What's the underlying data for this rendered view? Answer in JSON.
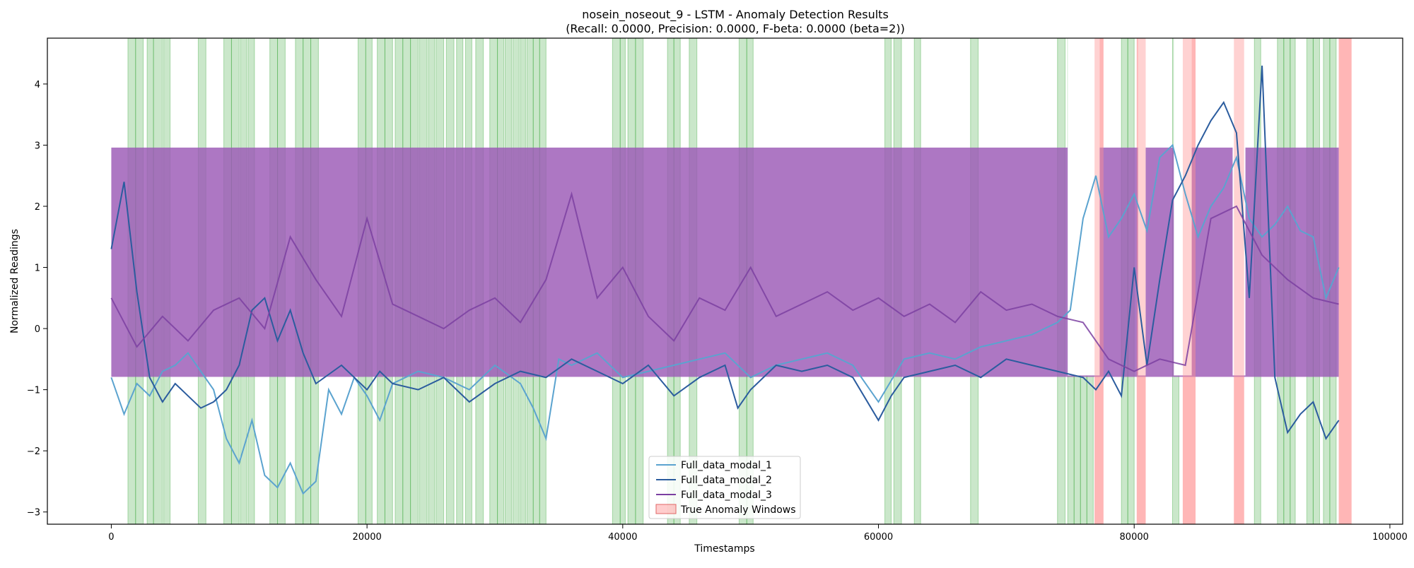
{
  "chart_data": {
    "type": "line",
    "title_line1": "nosein_noseout_9 - LSTM - Anomaly Detection Results",
    "title_line2": "(Recall: 0.0000, Precision: 0.0000, F-beta: 0.0000 (beta=2))",
    "xlabel": "Timestamps",
    "ylabel": "Normalized Readings",
    "xlim": [
      -5000,
      101000
    ],
    "ylim": [
      -3.2,
      4.75
    ],
    "x_ticks": [
      0,
      20000,
      40000,
      60000,
      80000,
      100000
    ],
    "x_tick_labels": [
      "0",
      "20000",
      "40000",
      "60000",
      "80000",
      "100000"
    ],
    "y_ticks": [
      -3,
      -2,
      -1,
      0,
      1,
      2,
      3,
      4
    ],
    "y_tick_labels": [
      "−3",
      "−2",
      "−1",
      "0",
      "1",
      "2",
      "3",
      "4"
    ],
    "grid": false,
    "legend_position": "lower-center",
    "series": [
      {
        "name": "Full_data_modal_1",
        "color": "#5ba3cf",
        "x": [
          0,
          1000,
          2000,
          3000,
          4000,
          5000,
          6000,
          8000,
          9000,
          10000,
          11000,
          12000,
          13000,
          14000,
          15000,
          16000,
          17000,
          18000,
          19000,
          20000,
          21000,
          22000,
          24000,
          26000,
          28000,
          30000,
          32000,
          33000,
          34000,
          35000,
          36000,
          38000,
          40000,
          42000,
          44000,
          46000,
          48000,
          50000,
          52000,
          54000,
          56000,
          58000,
          60000,
          62000,
          64000,
          66000,
          68000,
          70000,
          72000,
          74000,
          75000,
          76000,
          77000,
          78000,
          79000,
          80000,
          81000,
          82000,
          83000,
          84000,
          85000,
          86000,
          87000,
          88000,
          89000,
          90000,
          91000,
          92000,
          93000,
          94000,
          95000,
          96000
        ],
        "values": [
          -0.8,
          -1.4,
          -0.9,
          -1.1,
          -0.7,
          -0.6,
          -0.4,
          -1.0,
          -1.8,
          -2.2,
          -1.5,
          -2.4,
          -2.6,
          -2.2,
          -2.7,
          -2.5,
          -1.0,
          -1.4,
          -0.8,
          -1.1,
          -1.5,
          -0.9,
          -0.7,
          -0.8,
          -1.0,
          -0.6,
          -0.9,
          -1.3,
          -1.8,
          -0.5,
          -0.6,
          -0.4,
          -0.8,
          -0.7,
          -0.6,
          -0.5,
          -0.4,
          -0.8,
          -0.6,
          -0.5,
          -0.4,
          -0.6,
          -1.2,
          -0.5,
          -0.4,
          -0.5,
          -0.3,
          -0.2,
          -0.1,
          0.1,
          0.3,
          1.8,
          2.5,
          1.5,
          1.8,
          2.2,
          1.6,
          2.8,
          3.0,
          2.2,
          1.5,
          2.0,
          2.3,
          2.8,
          1.8,
          1.5,
          1.7,
          2.0,
          1.6,
          1.5,
          0.5,
          1.0
        ]
      },
      {
        "name": "Full_data_modal_2",
        "color": "#2b5c9e",
        "x": [
          0,
          1000,
          2000,
          3000,
          4000,
          5000,
          6000,
          7000,
          8000,
          9000,
          10000,
          11000,
          12000,
          13000,
          14000,
          15000,
          16000,
          18000,
          20000,
          21000,
          22000,
          24000,
          26000,
          28000,
          30000,
          32000,
          34000,
          36000,
          38000,
          40000,
          42000,
          44000,
          46000,
          48000,
          49000,
          50000,
          52000,
          54000,
          56000,
          58000,
          60000,
          61000,
          62000,
          64000,
          66000,
          68000,
          70000,
          72000,
          74000,
          76000,
          77000,
          78000,
          79000,
          80000,
          81000,
          82000,
          83000,
          84000,
          85000,
          86000,
          87000,
          88000,
          89000,
          90000,
          91000,
          92000,
          93000,
          94000,
          95000,
          96000
        ],
        "values": [
          1.3,
          2.4,
          0.6,
          -0.8,
          -1.2,
          -0.9,
          -1.1,
          -1.3,
          -1.2,
          -1.0,
          -0.6,
          0.3,
          0.5,
          -0.2,
          0.3,
          -0.4,
          -0.9,
          -0.6,
          -1.0,
          -0.7,
          -0.9,
          -1.0,
          -0.8,
          -1.2,
          -0.9,
          -0.7,
          -0.8,
          -0.5,
          -0.7,
          -0.9,
          -0.6,
          -1.1,
          -0.8,
          -0.6,
          -1.3,
          -1.0,
          -0.6,
          -0.7,
          -0.6,
          -0.8,
          -1.5,
          -1.1,
          -0.8,
          -0.7,
          -0.6,
          -0.8,
          -0.5,
          -0.6,
          -0.7,
          -0.8,
          -1.0,
          -0.7,
          -1.1,
          1.0,
          -0.6,
          0.8,
          2.1,
          2.5,
          3.0,
          3.4,
          3.7,
          3.2,
          0.5,
          4.3,
          -0.8,
          -1.7,
          -1.4,
          -1.2,
          -1.8,
          -1.5
        ]
      },
      {
        "name": "Full_data_modal_3",
        "color": "#7b3fa1",
        "x": [
          0,
          2000,
          4000,
          6000,
          8000,
          10000,
          12000,
          14000,
          16000,
          18000,
          20000,
          22000,
          24000,
          26000,
          28000,
          30000,
          32000,
          34000,
          36000,
          38000,
          40000,
          42000,
          44000,
          46000,
          48000,
          50000,
          52000,
          54000,
          56000,
          58000,
          60000,
          62000,
          64000,
          66000,
          68000,
          70000,
          72000,
          74000,
          76000,
          78000,
          80000,
          82000,
          84000,
          86000,
          88000,
          90000,
          92000,
          94000,
          96000
        ],
        "values": [
          0.5,
          -0.3,
          0.2,
          -0.2,
          0.3,
          0.5,
          0.0,
          1.5,
          0.8,
          0.2,
          1.8,
          0.4,
          0.2,
          0.0,
          0.3,
          0.5,
          0.1,
          0.8,
          2.2,
          0.5,
          1.0,
          0.2,
          -0.2,
          0.5,
          0.3,
          1.0,
          0.2,
          0.4,
          0.6,
          0.3,
          0.5,
          0.2,
          0.4,
          0.1,
          0.6,
          0.3,
          0.4,
          0.2,
          0.1,
          -0.5,
          -0.7,
          -0.5,
          -0.6,
          1.8,
          2.0,
          1.2,
          0.8,
          0.5,
          0.4
        ]
      }
    ],
    "band_series": {
      "name": "Full_data_modal_3",
      "color": "#9b59b6",
      "lower": -0.79,
      "upper": 2.96,
      "x_start": 0,
      "x_end": 96000,
      "flat_intervals": [
        [
          74800,
          77300
        ],
        [
          80300,
          80900
        ],
        [
          83100,
          84500
        ],
        [
          87700,
          88700
        ]
      ]
    },
    "predicted_windows": {
      "color": "#2ca02c",
      "intervals": [
        [
          1300,
          1900
        ],
        [
          1900,
          2500
        ],
        [
          2800,
          3300
        ],
        [
          3300,
          4000
        ],
        [
          4100,
          4600
        ],
        [
          6800,
          7400
        ],
        [
          8800,
          9400
        ],
        [
          9400,
          10000
        ],
        [
          10100,
          10600
        ],
        [
          10700,
          11200
        ],
        [
          12400,
          13000
        ],
        [
          13000,
          13600
        ],
        [
          14400,
          15000
        ],
        [
          15000,
          15600
        ],
        [
          15600,
          16200
        ],
        [
          19300,
          19900
        ],
        [
          19900,
          20400
        ],
        [
          20800,
          21400
        ],
        [
          21400,
          22000
        ],
        [
          22200,
          22800
        ],
        [
          22800,
          23400
        ],
        [
          23400,
          24000
        ],
        [
          24100,
          24700
        ],
        [
          24800,
          25300
        ],
        [
          25400,
          26000
        ],
        [
          26200,
          26800
        ],
        [
          27000,
          27500
        ],
        [
          27700,
          28200
        ],
        [
          28500,
          29100
        ],
        [
          29600,
          30200
        ],
        [
          30200,
          30700
        ],
        [
          30800,
          31300
        ],
        [
          31400,
          31900
        ],
        [
          32000,
          32400
        ],
        [
          32500,
          33000
        ],
        [
          33000,
          33500
        ],
        [
          33500,
          34000
        ],
        [
          39200,
          39800
        ],
        [
          39800,
          40200
        ],
        [
          40400,
          41000
        ],
        [
          41000,
          41600
        ],
        [
          43500,
          44000
        ],
        [
          44000,
          44500
        ],
        [
          45200,
          45800
        ],
        [
          49100,
          49700
        ],
        [
          49700,
          50200
        ],
        [
          60500,
          61000
        ],
        [
          61200,
          61800
        ],
        [
          62800,
          63300
        ],
        [
          67200,
          67800
        ],
        [
          74000,
          74600
        ],
        [
          74800,
          75300
        ],
        [
          75300,
          75800
        ],
        [
          75800,
          76300
        ],
        [
          76300,
          76800
        ],
        [
          79000,
          79500
        ],
        [
          79500,
          80000
        ],
        [
          83000,
          83500
        ],
        [
          89400,
          89900
        ],
        [
          91200,
          91700
        ],
        [
          91700,
          92200
        ],
        [
          92200,
          92600
        ],
        [
          93500,
          94000
        ],
        [
          94000,
          94500
        ],
        [
          94800,
          95300
        ],
        [
          95300,
          95800
        ]
      ]
    },
    "true_anomaly_windows": {
      "name": "True Anomaly Windows",
      "color": "#ff9b9b",
      "intervals": [
        [
          76900,
          77600
        ],
        [
          80200,
          80900
        ],
        [
          83800,
          84800
        ],
        [
          87800,
          88600
        ],
        [
          96000,
          97000
        ]
      ]
    }
  }
}
